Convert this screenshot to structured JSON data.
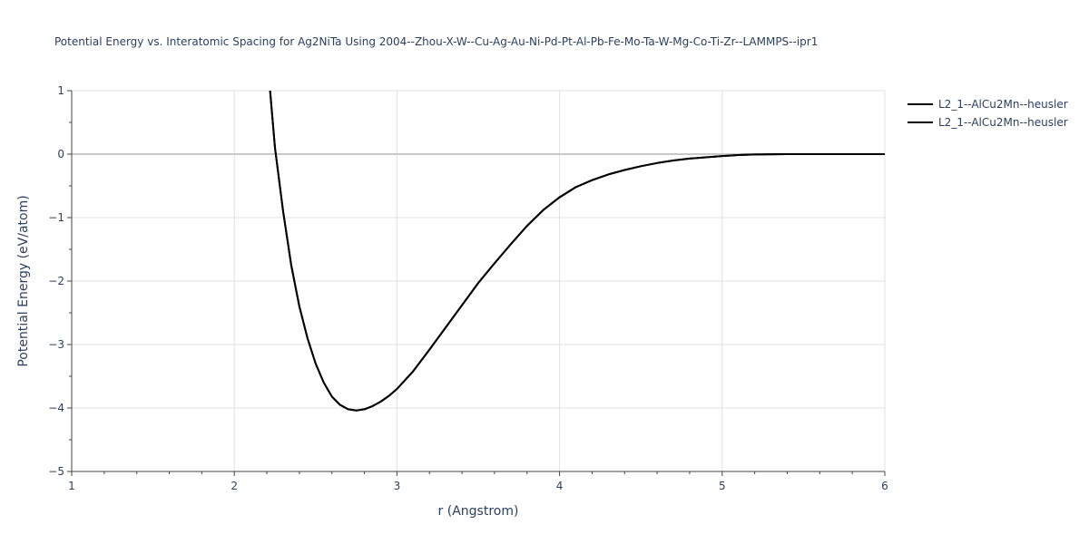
{
  "chart_data": {
    "type": "line",
    "title": "Potential Energy vs. Interatomic Spacing for Ag2NiTa Using 2004--Zhou-X-W--Cu-Ag-Au-Ni-Pd-Pt-Al-Pb-Fe-Mo-Ta-W-Mg-Co-Ti-Zr--LAMMPS--ipr1",
    "xlabel": "r (Angstrom)",
    "ylabel": "Potential Energy (eV/atom)",
    "xlim": [
      1,
      6
    ],
    "ylim": [
      -5,
      1
    ],
    "xticks": [
      1,
      2,
      3,
      4,
      5,
      6
    ],
    "yticks": [
      1,
      0,
      -1,
      -2,
      -3,
      -4,
      -5
    ],
    "ytick_labels": [
      "1",
      "0",
      "−1",
      "−2",
      "−3",
      "−4",
      "−5"
    ],
    "grid": true,
    "legend_position": "top-right",
    "series": [
      {
        "name": "L2_1--AlCu2Mn--heusler",
        "color": "#000000",
        "x": [
          2.22,
          2.25,
          2.3,
          2.35,
          2.4,
          2.45,
          2.5,
          2.55,
          2.6,
          2.65,
          2.7,
          2.75,
          2.8,
          2.85,
          2.9,
          2.95,
          3.0,
          3.1,
          3.2,
          3.3,
          3.4,
          3.5,
          3.6,
          3.7,
          3.8,
          3.9,
          4.0,
          4.1,
          4.2,
          4.3,
          4.4,
          4.5,
          4.6,
          4.7,
          4.8,
          4.9,
          5.0,
          5.1,
          5.2,
          5.4,
          5.6,
          5.8,
          6.0
        ],
        "y": [
          1.0,
          0.1,
          -0.9,
          -1.75,
          -2.4,
          -2.9,
          -3.3,
          -3.6,
          -3.82,
          -3.95,
          -4.02,
          -4.04,
          -4.02,
          -3.97,
          -3.9,
          -3.81,
          -3.7,
          -3.42,
          -3.08,
          -2.73,
          -2.38,
          -2.03,
          -1.72,
          -1.42,
          -1.13,
          -0.88,
          -0.68,
          -0.52,
          -0.41,
          -0.32,
          -0.25,
          -0.19,
          -0.14,
          -0.1,
          -0.07,
          -0.05,
          -0.03,
          -0.015,
          -0.005,
          0.0,
          0.0,
          0.0,
          0.0
        ]
      },
      {
        "name": "L2_1--AlCu2Mn--heusler",
        "color": "#000000",
        "x": [
          2.22,
          2.25,
          2.3,
          2.35,
          2.4,
          2.45,
          2.5,
          2.55,
          2.6,
          2.65,
          2.7,
          2.75,
          2.8,
          2.85,
          2.9,
          2.95,
          3.0,
          3.1,
          3.2,
          3.3,
          3.4,
          3.5,
          3.6,
          3.7,
          3.8,
          3.9,
          4.0,
          4.1,
          4.2,
          4.3,
          4.4,
          4.5,
          4.6,
          4.7,
          4.8,
          4.9,
          5.0,
          5.1,
          5.2,
          5.4,
          5.6,
          5.8,
          6.0
        ],
        "y": [
          1.0,
          0.1,
          -0.9,
          -1.75,
          -2.4,
          -2.9,
          -3.3,
          -3.6,
          -3.82,
          -3.95,
          -4.02,
          -4.04,
          -4.02,
          -3.97,
          -3.9,
          -3.81,
          -3.7,
          -3.42,
          -3.08,
          -2.73,
          -2.38,
          -2.03,
          -1.72,
          -1.42,
          -1.13,
          -0.88,
          -0.68,
          -0.52,
          -0.41,
          -0.32,
          -0.25,
          -0.19,
          -0.14,
          -0.1,
          -0.07,
          -0.05,
          -0.03,
          -0.015,
          -0.005,
          0.0,
          0.0,
          0.0,
          0.0
        ]
      }
    ]
  }
}
